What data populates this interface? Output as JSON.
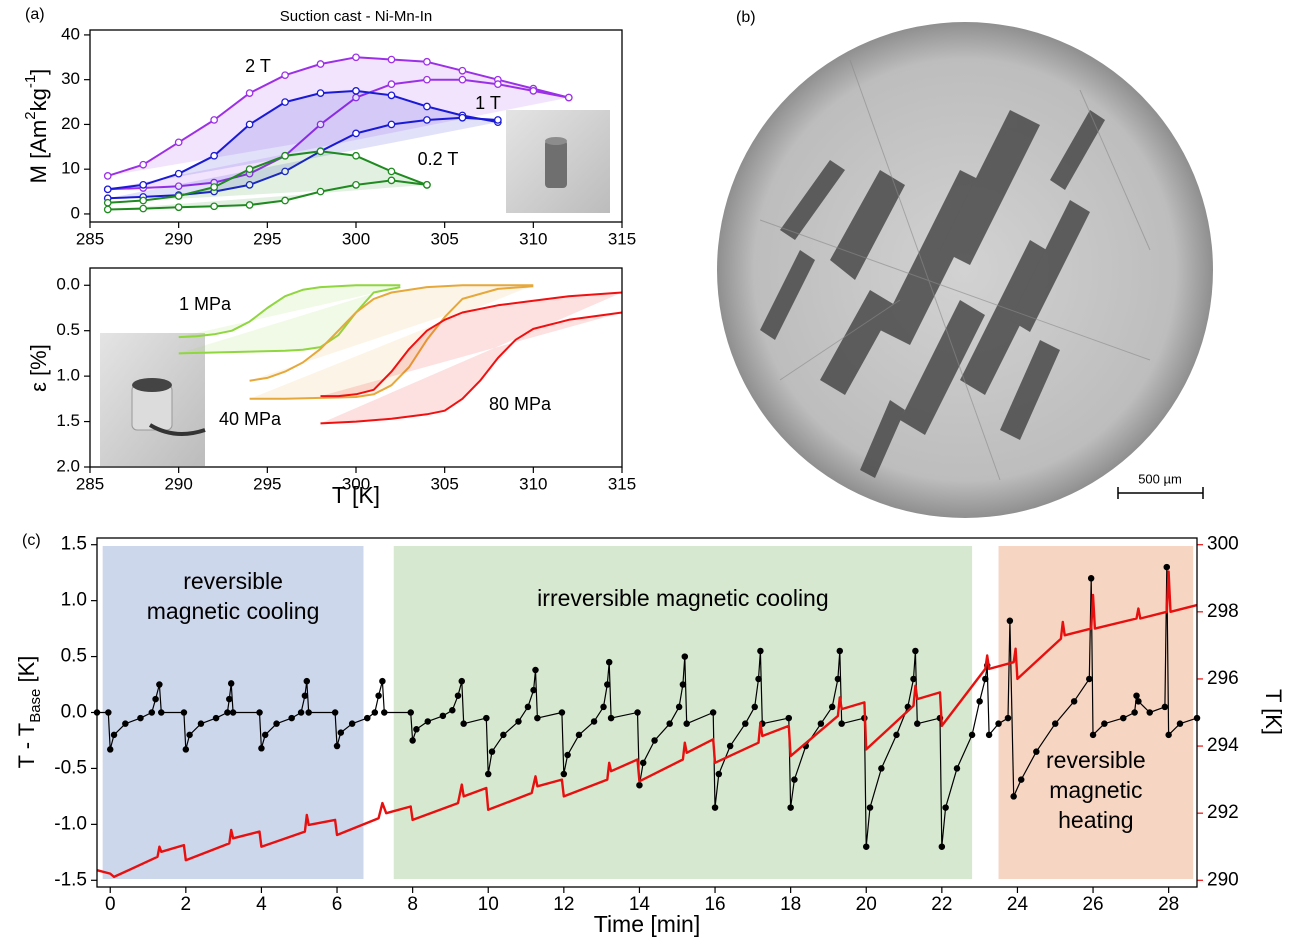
{
  "panels": {
    "a": "(a)",
    "b": "(b)",
    "c": "(c)"
  },
  "image": {
    "scale_bar": "500 µm"
  },
  "chart_data": [
    {
      "type": "line",
      "title": "Suction cast - Ni-Mn-In",
      "ylabel": [
        "M [Am",
        {
          "text": "2",
          "shift": "super"
        },
        "kg",
        {
          "text": "-1",
          "shift": "super"
        },
        "]"
      ],
      "xlim": [
        285,
        315
      ],
      "xticks": [
        285,
        290,
        295,
        300,
        305,
        310,
        315
      ],
      "ylim": [
        -1.8,
        41.1
      ],
      "yticks": [
        0,
        10,
        20,
        30,
        40
      ],
      "marker": "open-circle",
      "series": [
        {
          "name": "2 T",
          "color": "#9b30e8",
          "branches": [
            {
              "x": [
                312,
                310,
                308,
                306,
                304,
                302,
                300,
                298,
                296,
                294,
                292,
                290,
                288,
                286
              ],
              "values": [
                26,
                28,
                30,
                32,
                34,
                34.5,
                35,
                33.5,
                31,
                27,
                21,
                16,
                11,
                8.5
              ]
            },
            {
              "x": [
                286,
                288,
                290,
                292,
                294,
                296,
                298,
                300,
                302,
                304,
                306,
                308,
                310,
                312
              ],
              "values": [
                5.5,
                5.8,
                6.2,
                7,
                9,
                13,
                20,
                26,
                29,
                30,
                30,
                29,
                27.5,
                26
              ]
            }
          ]
        },
        {
          "name": "1 T",
          "color": "#1a1ad6",
          "branches": [
            {
              "x": [
                308,
                306,
                304,
                302,
                300,
                298,
                296,
                294,
                292,
                290,
                288,
                286
              ],
              "values": [
                20.5,
                22,
                24,
                26.5,
                27.5,
                27,
                25,
                20,
                13,
                9,
                6.5,
                5.5
              ]
            },
            {
              "x": [
                286,
                288,
                290,
                292,
                294,
                296,
                298,
                300,
                302,
                304,
                306,
                308
              ],
              "values": [
                3.5,
                3.8,
                4.2,
                5,
                6.5,
                9.5,
                14,
                18,
                20,
                21,
                21.5,
                21
              ]
            }
          ]
        },
        {
          "name": "0.2 T",
          "color": "#1f8a1f",
          "branches": [
            {
              "x": [
                304,
                302,
                300,
                298,
                296,
                294,
                292,
                290,
                288,
                286
              ],
              "values": [
                6.5,
                9.5,
                13,
                14,
                13,
                10,
                6,
                4,
                3,
                2.5
              ]
            },
            {
              "x": [
                286,
                288,
                290,
                292,
                294,
                296,
                298,
                300,
                302,
                304
              ],
              "values": [
                1,
                1.2,
                1.5,
                1.7,
                2,
                3,
                5,
                6.5,
                7.5,
                6.5
              ]
            }
          ]
        }
      ]
    },
    {
      "type": "line",
      "xlabel": "T [K]",
      "ylabel": [
        "ε [%]"
      ],
      "xlim": [
        285,
        315
      ],
      "xticks": [
        285,
        290,
        295,
        300,
        305,
        310,
        315
      ],
      "ylim": [
        2.0,
        -0.19
      ],
      "yticks": [
        {
          "value": 0,
          "label": "0.0"
        },
        0.5,
        {
          "value": 1,
          "label": "1.0"
        },
        1.5,
        {
          "value": 2,
          "label": "2.0"
        }
      ],
      "series": [
        {
          "name": "1 MPa",
          "color": "#8fd63f",
          "branches": [
            {
              "x": [
                302.5,
                300,
                298,
                297,
                296,
                295,
                294,
                293,
                292,
                291,
                290
              ],
              "values": [
                0,
                0,
                0.02,
                0.05,
                0.12,
                0.25,
                0.4,
                0.5,
                0.54,
                0.56,
                0.57
              ]
            },
            {
              "x": [
                290,
                292,
                294,
                296,
                297,
                298,
                299,
                300,
                301,
                302.5
              ],
              "values": [
                0.75,
                0.74,
                0.73,
                0.72,
                0.71,
                0.68,
                0.55,
                0.3,
                0.08,
                0.02
              ]
            }
          ]
        },
        {
          "name": "40 MPa",
          "color": "#e6a83a",
          "branches": [
            {
              "x": [
                310,
                306,
                304,
                302,
                301,
                300,
                299,
                298,
                297,
                296,
                295,
                294
              ],
              "values": [
                0,
                0,
                0.02,
                0.08,
                0.15,
                0.3,
                0.5,
                0.7,
                0.85,
                0.95,
                1.02,
                1.05
              ]
            },
            {
              "x": [
                294,
                296,
                298,
                300,
                301,
                302,
                303,
                304,
                305,
                306,
                308,
                310
              ],
              "values": [
                1.25,
                1.25,
                1.24,
                1.23,
                1.2,
                1.1,
                0.9,
                0.6,
                0.35,
                0.15,
                0.04,
                0.01
              ]
            }
          ]
        },
        {
          "name": "80 MPa",
          "color": "#f01010",
          "branches": [
            {
              "x": [
                315,
                312,
                310,
                308,
                306,
                305,
                304,
                303,
                302,
                301,
                300,
                299,
                298
              ],
              "values": [
                0.08,
                0.12,
                0.17,
                0.22,
                0.3,
                0.38,
                0.5,
                0.7,
                0.95,
                1.15,
                1.2,
                1.22,
                1.22
              ]
            },
            {
              "x": [
                298,
                300,
                302,
                304,
                305,
                306,
                307,
                308,
                309,
                310,
                312,
                315
              ],
              "values": [
                1.52,
                1.5,
                1.47,
                1.42,
                1.38,
                1.25,
                1.05,
                0.8,
                0.6,
                0.48,
                0.38,
                0.3
              ]
            }
          ]
        }
      ]
    },
    {
      "type": "line",
      "xlabel": "Time [min]",
      "ylabel": [
        "T - T",
        {
          "text": "Base",
          "shift": "sub"
        },
        " [K]"
      ],
      "y2label": "T [K]",
      "xlim": [
        -0.35,
        28.75
      ],
      "xticks": [
        0,
        2,
        4,
        6,
        8,
        10,
        12,
        14,
        16,
        18,
        20,
        22,
        24,
        26,
        28
      ],
      "ylim": [
        -1.56,
        1.56
      ],
      "yticks": [
        -1.5,
        {
          "value": -1,
          "label": "-1.0"
        },
        -0.5,
        {
          "value": 0,
          "label": "0.0"
        },
        0.5,
        {
          "value": 1,
          "label": "1.0"
        },
        1.5
      ],
      "y2lim": [
        289.8,
        300.2
      ],
      "y2ticks": [
        290,
        292,
        294,
        296,
        298,
        300
      ],
      "regions": [
        {
          "label": [
            "reversible",
            "magnetic cooling"
          ],
          "x": [
            -0.2,
            6.7
          ],
          "color": "#cdd7ec"
        },
        {
          "label": [
            "irreversible magnetic cooling"
          ],
          "x": [
            7.5,
            22.8
          ],
          "color": "#d7e8d0"
        },
        {
          "label": [
            "reversible",
            "magnetic",
            "heating"
          ],
          "x": [
            23.5,
            28.65
          ],
          "color": "#f6d6c3"
        }
      ],
      "series": [
        {
          "color": "#000000",
          "marker": "dot",
          "x": [
            -0.35,
            -0.05,
            0,
            0.1,
            0.4,
            0.8,
            1.1,
            1.2,
            1.3,
            1.35,
            1.95,
            2,
            2.1,
            2.4,
            2.8,
            3.1,
            3.15,
            3.2,
            3.25,
            3.95,
            4,
            4.1,
            4.4,
            4.8,
            5.05,
            5.15,
            5.2,
            5.25,
            5.95,
            6,
            6.1,
            6.4,
            6.8,
            7,
            7.1,
            7.2,
            7.25,
            7.95,
            8,
            8.1,
            8.4,
            8.8,
            9.05,
            9.2,
            9.3,
            9.35,
            9.95,
            10,
            10.1,
            10.4,
            10.8,
            11.05,
            11.2,
            11.25,
            11.3,
            11.95,
            12,
            12.1,
            12.4,
            12.8,
            13.05,
            13.15,
            13.2,
            13.25,
            13.95,
            14,
            14.1,
            14.4,
            14.8,
            15.05,
            15.15,
            15.2,
            15.25,
            15.95,
            16,
            16.1,
            16.4,
            16.8,
            17.05,
            17.15,
            17.2,
            17.25,
            17.95,
            18,
            18.1,
            18.4,
            18.8,
            19.1,
            19.25,
            19.3,
            19.35,
            19.95,
            20,
            20.1,
            20.4,
            20.8,
            21.1,
            21.25,
            21.3,
            21.35,
            21.95,
            22,
            22.1,
            22.4,
            22.8,
            23,
            23.15,
            23.2,
            23.25,
            23.5,
            23.75,
            23.8,
            23.9,
            24.1,
            24.5,
            25,
            25.5,
            25.9,
            25.95,
            26,
            26.3,
            26.8,
            27.1,
            27.15,
            27.2,
            27.5,
            27.9,
            27.95,
            28,
            28.3,
            28.75
          ],
          "values": [
            0,
            0,
            -0.33,
            -0.2,
            -0.1,
            -0.05,
            0,
            0.12,
            0.25,
            0,
            0,
            -0.33,
            -0.2,
            -0.1,
            -0.05,
            0,
            0.12,
            0.26,
            0,
            0,
            -0.32,
            -0.2,
            -0.1,
            -0.05,
            0,
            0.15,
            0.28,
            0,
            0,
            -0.3,
            -0.18,
            -0.1,
            -0.05,
            0,
            0.15,
            0.28,
            0,
            0,
            -0.25,
            -0.15,
            -0.08,
            -0.03,
            0.02,
            0.15,
            0.28,
            -0.1,
            -0.05,
            -0.55,
            -0.35,
            -0.2,
            -0.08,
            0.05,
            0.2,
            0.38,
            -0.05,
            0,
            -0.55,
            -0.38,
            -0.2,
            -0.08,
            0.05,
            0.25,
            0.45,
            -0.05,
            0,
            -0.65,
            -0.45,
            -0.25,
            -0.1,
            0.05,
            0.25,
            0.5,
            -0.1,
            0,
            -0.85,
            -0.55,
            -0.3,
            -0.1,
            0.05,
            0.3,
            0.55,
            -0.1,
            -0.05,
            -0.85,
            -0.6,
            -0.3,
            -0.1,
            0.05,
            0.3,
            0.55,
            -0.1,
            -0.05,
            -1.2,
            -0.85,
            -0.5,
            -0.2,
            0.05,
            0.3,
            0.55,
            -0.1,
            -0.05,
            -1.2,
            -0.85,
            -0.5,
            -0.2,
            0.1,
            0.3,
            0.42,
            -0.2,
            -0.1,
            -0.05,
            0.82,
            -0.75,
            -0.6,
            -0.35,
            -0.1,
            0.1,
            0.3,
            1.2,
            -0.2,
            -0.1,
            -0.05,
            0,
            0.15,
            0.1,
            0,
            0.05,
            1.3,
            -0.2,
            -0.1,
            -0.05
          ]
        },
        {
          "color": "#e8100f",
          "axis": "y2",
          "x": [
            -0.35,
            0,
            0.1,
            1.25,
            1.3,
            1.35,
            1.95,
            2,
            3.15,
            3.2,
            3.25,
            3.95,
            4,
            5.15,
            5.2,
            5.25,
            5.95,
            6,
            7.1,
            7.2,
            7.3,
            7.95,
            8,
            9.2,
            9.3,
            9.35,
            9.95,
            10,
            11.15,
            11.25,
            11.3,
            11.95,
            12,
            13.15,
            13.2,
            13.25,
            13.95,
            14,
            15.15,
            15.2,
            15.25,
            15.95,
            16,
            17.15,
            17.2,
            17.25,
            17.95,
            18,
            19.25,
            19.3,
            19.35,
            19.95,
            20,
            21.25,
            21.3,
            21.35,
            21.95,
            22,
            23.15,
            23.2,
            23.25,
            23.9,
            23.95,
            24,
            25.15,
            25.2,
            25.25,
            25.95,
            26,
            26.05,
            27.15,
            27.2,
            27.25,
            27.95,
            28,
            28.05,
            28.75
          ],
          "values": [
            290.3,
            290.2,
            290.1,
            290.7,
            291,
            290.85,
            291.05,
            290.6,
            291.1,
            291.5,
            291.25,
            291.45,
            291,
            291.45,
            291.95,
            291.65,
            291.8,
            291.35,
            291.85,
            292.3,
            292,
            292.2,
            291.8,
            292.3,
            292.85,
            292.5,
            292.75,
            292.1,
            292.6,
            293.1,
            292.8,
            293,
            292.5,
            293,
            293.5,
            293.25,
            293.6,
            292.95,
            293.6,
            294.1,
            293.8,
            294.2,
            293.5,
            294.1,
            294.7,
            294.3,
            294.6,
            293.7,
            294.9,
            295.45,
            295.1,
            295.3,
            293.9,
            295.2,
            295.8,
            295.4,
            295.6,
            294.6,
            296.3,
            296.7,
            296.3,
            296.5,
            296.9,
            296,
            297.2,
            297.7,
            297.3,
            297.5,
            298.5,
            297.5,
            297.8,
            298.1,
            297.8,
            298,
            299.2,
            298,
            298.2
          ]
        }
      ]
    }
  ]
}
